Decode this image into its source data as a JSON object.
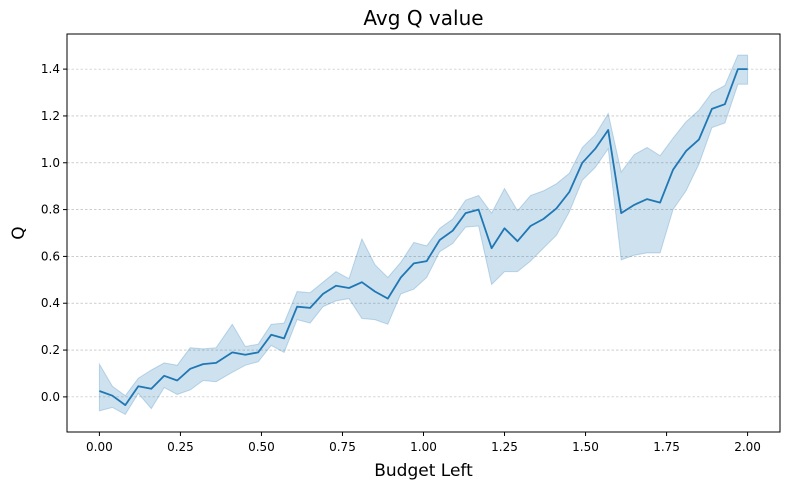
{
  "chart_data": {
    "type": "line",
    "title": "Avg Q value",
    "xlabel": "Budget Left",
    "ylabel": "Q",
    "xlim": [
      -0.1,
      2.1
    ],
    "ylim": [
      -0.15,
      1.55
    ],
    "xticks": [
      0.0,
      0.25,
      0.5,
      0.75,
      1.0,
      1.25,
      1.5,
      1.75,
      2.0
    ],
    "xtick_labels": [
      "0.00",
      "0.25",
      "0.50",
      "0.75",
      "1.00",
      "1.25",
      "1.50",
      "1.75",
      "2.00"
    ],
    "yticks": [
      0.0,
      0.2,
      0.4,
      0.6,
      0.8,
      1.0,
      1.2,
      1.4
    ],
    "ytick_labels": [
      "0.0",
      "0.2",
      "0.4",
      "0.6",
      "0.8",
      "1.0",
      "1.2",
      "1.4"
    ],
    "grid": "horizontal dashed",
    "colors": {
      "line": "#1f77b4",
      "band": "#1f77b4"
    },
    "series": [
      {
        "x": [
          0.0,
          0.04,
          0.08,
          0.12,
          0.16,
          0.2,
          0.24,
          0.28,
          0.32,
          0.36,
          0.41,
          0.45,
          0.49,
          0.53,
          0.57,
          0.61,
          0.65,
          0.69,
          0.73,
          0.77,
          0.81,
          0.85,
          0.89,
          0.93,
          0.97,
          1.01,
          1.05,
          1.09,
          1.13,
          1.17,
          1.21,
          1.25,
          1.29,
          1.33,
          1.37,
          1.41,
          1.45,
          1.49,
          1.53,
          1.57,
          1.61,
          1.65,
          1.69,
          1.73,
          1.77,
          1.81,
          1.85,
          1.89,
          1.93,
          1.97,
          2.0
        ],
        "mean": [
          0.025,
          0.005,
          -0.035,
          0.045,
          0.035,
          0.09,
          0.07,
          0.12,
          0.14,
          0.145,
          0.19,
          0.18,
          0.19,
          0.265,
          0.25,
          0.385,
          0.38,
          0.44,
          0.475,
          0.465,
          0.49,
          0.45,
          0.42,
          0.51,
          0.57,
          0.58,
          0.67,
          0.71,
          0.785,
          0.8,
          0.635,
          0.72,
          0.665,
          0.73,
          0.76,
          0.805,
          0.875,
          1.0,
          1.06,
          1.14,
          0.785,
          0.82,
          0.845,
          0.83,
          0.97,
          1.05,
          1.1,
          1.23,
          1.25,
          1.4,
          1.4
        ],
        "lower": [
          -0.06,
          -0.045,
          -0.075,
          0.015,
          -0.05,
          0.04,
          0.01,
          0.03,
          0.07,
          0.065,
          0.105,
          0.135,
          0.15,
          0.22,
          0.19,
          0.33,
          0.315,
          0.385,
          0.41,
          0.42,
          0.335,
          0.33,
          0.31,
          0.44,
          0.46,
          0.51,
          0.62,
          0.655,
          0.725,
          0.73,
          0.48,
          0.535,
          0.535,
          0.58,
          0.635,
          0.69,
          0.79,
          0.925,
          0.98,
          1.06,
          0.585,
          0.605,
          0.615,
          0.615,
          0.8,
          0.88,
          0.995,
          1.15,
          1.17,
          1.335,
          1.335
        ],
        "upper": [
          0.14,
          0.045,
          0.005,
          0.08,
          0.115,
          0.145,
          0.135,
          0.21,
          0.205,
          0.21,
          0.31,
          0.215,
          0.225,
          0.31,
          0.315,
          0.45,
          0.445,
          0.49,
          0.535,
          0.505,
          0.675,
          0.565,
          0.51,
          0.575,
          0.66,
          0.645,
          0.72,
          0.76,
          0.84,
          0.86,
          0.785,
          0.89,
          0.795,
          0.86,
          0.88,
          0.91,
          0.955,
          1.065,
          1.12,
          1.21,
          0.96,
          1.035,
          1.065,
          1.03,
          1.105,
          1.175,
          1.225,
          1.3,
          1.33,
          1.46,
          1.46
        ]
      }
    ]
  }
}
